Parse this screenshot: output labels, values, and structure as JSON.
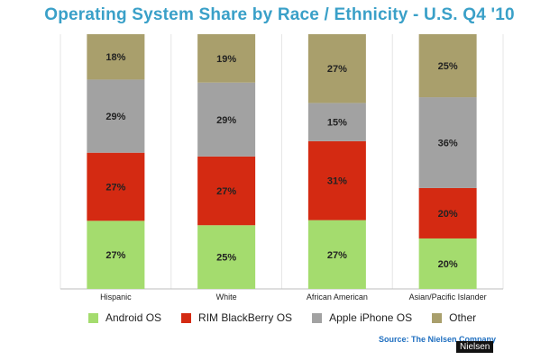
{
  "chart_data": {
    "type": "bar",
    "stacked": true,
    "title": "Operating System Share by Race / Ethnicity - U.S. Q4 '10",
    "categories": [
      "Hispanic",
      "White",
      "African American",
      "Asian/Pacific Islander"
    ],
    "series": [
      {
        "name": "Android OS",
        "color": "#a4dc6e",
        "values": [
          27,
          25,
          27,
          20
        ]
      },
      {
        "name": "RIM BlackBerry OS",
        "color": "#d42a12",
        "values": [
          27,
          27,
          31,
          20
        ]
      },
      {
        "name": "Apple iPhone OS",
        "color": "#a2a2a2",
        "values": [
          29,
          29,
          15,
          36
        ]
      },
      {
        "name": "Other",
        "color": "#a99f6c",
        "values": [
          18,
          19,
          27,
          25
        ]
      }
    ],
    "value_suffix": "%",
    "legend_position": "bottom",
    "grid": true,
    "ylim": [
      0,
      100
    ]
  },
  "source": "Source: The Nielsen Company",
  "watermark": "Nielsen",
  "colors": {
    "title": "#3aa0c8",
    "grid": "#e6e6e6",
    "source": "#1f6fc0"
  }
}
